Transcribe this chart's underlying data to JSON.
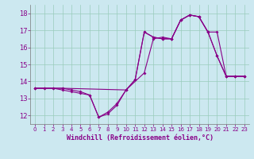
{
  "xlabel": "Windchill (Refroidissement éolien,°C)",
  "background_color": "#cce8f0",
  "line_color": "#880088",
  "grid_color": "#99ccbb",
  "xlim": [
    -0.5,
    23.5
  ],
  "ylim": [
    11.5,
    18.5
  ],
  "yticks": [
    12,
    13,
    14,
    15,
    16,
    17,
    18
  ],
  "xticks": [
    0,
    1,
    2,
    3,
    4,
    5,
    6,
    7,
    8,
    9,
    10,
    11,
    12,
    13,
    14,
    15,
    16,
    17,
    18,
    19,
    20,
    21,
    22,
    23
  ],
  "line1_x": [
    0,
    1,
    2,
    3,
    4,
    5,
    6,
    7,
    8,
    9,
    10,
    11,
    12,
    13,
    14,
    15,
    16,
    17,
    18,
    19,
    20,
    21,
    22,
    23
  ],
  "line1_y": [
    13.6,
    13.6,
    13.6,
    13.6,
    13.5,
    13.4,
    13.2,
    11.9,
    12.2,
    12.7,
    13.5,
    14.1,
    16.9,
    16.6,
    16.5,
    16.5,
    17.6,
    17.9,
    17.8,
    16.9,
    15.5,
    14.3,
    14.3,
    14.3
  ],
  "line2_x": [
    0,
    1,
    2,
    3,
    4,
    5,
    6,
    7,
    8,
    9,
    10,
    11,
    12,
    13,
    14,
    15,
    16,
    17,
    18,
    19,
    20,
    21,
    22,
    23
  ],
  "line2_y": [
    13.6,
    13.6,
    13.6,
    13.5,
    13.4,
    13.3,
    13.2,
    11.9,
    12.1,
    12.6,
    13.5,
    14.1,
    16.9,
    16.6,
    16.5,
    16.5,
    17.6,
    17.9,
    17.8,
    16.9,
    15.5,
    14.3,
    14.3,
    14.3
  ],
  "line3_x": [
    0,
    3,
    10,
    12,
    13,
    14,
    15,
    16,
    17,
    18,
    19,
    20,
    21,
    22,
    23
  ],
  "line3_y": [
    13.6,
    13.6,
    13.5,
    14.5,
    16.5,
    16.6,
    16.5,
    17.6,
    17.9,
    17.8,
    16.9,
    16.9,
    14.3,
    14.3,
    14.3
  ],
  "xlabel_fontsize": 6,
  "xtick_fontsize": 5,
  "ytick_fontsize": 6
}
